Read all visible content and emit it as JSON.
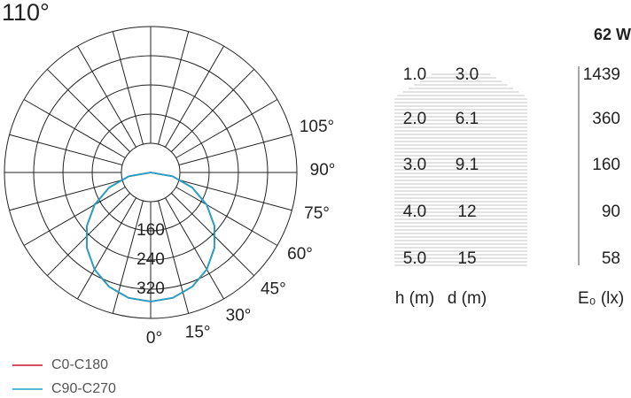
{
  "chart_data": {
    "type": "polar",
    "title": "110°",
    "angles": [
      -90,
      -80,
      -70,
      -60,
      -50,
      -40,
      -30,
      -20,
      -10,
      0,
      10,
      20,
      30,
      40,
      50,
      60,
      70,
      80,
      90
    ],
    "series": [
      {
        "name": "C0-C180",
        "color": "#c8102e",
        "values": [
          0,
          61,
          121,
          177,
          228,
          271,
          307,
          333,
          349,
          354,
          349,
          333,
          307,
          271,
          228,
          177,
          121,
          61,
          0
        ]
      },
      {
        "name": "C90-C270",
        "color": "#1aa7c9",
        "values": [
          0,
          61,
          121,
          177,
          228,
          271,
          307,
          333,
          349,
          354,
          349,
          333,
          307,
          271,
          228,
          177,
          121,
          61,
          0
        ]
      }
    ],
    "rlim": [
      0,
      400
    ],
    "rticks": [
      160,
      240,
      320
    ],
    "angleticks": [
      {
        "value": 0,
        "label": "0°"
      },
      {
        "value": 15,
        "label": "15°"
      },
      {
        "value": 30,
        "label": "30°"
      },
      {
        "value": 45,
        "label": "45°"
      },
      {
        "value": 60,
        "label": "60°"
      },
      {
        "value": 75,
        "label": "75°"
      },
      {
        "value": 90,
        "label": "90°"
      },
      {
        "value": 105,
        "label": "105°"
      }
    ]
  },
  "table": {
    "power": "62 W",
    "headers": [
      "h (m)",
      "d (m)",
      "E₀ (lx)"
    ],
    "rows": [
      [
        "1.0",
        "3.0",
        "1439"
      ],
      [
        "2.0",
        "6.1",
        "360"
      ],
      [
        "3.0",
        "9.1",
        "160"
      ],
      [
        "4.0",
        "12",
        "90"
      ],
      [
        "5.0",
        "15",
        "58"
      ]
    ]
  }
}
